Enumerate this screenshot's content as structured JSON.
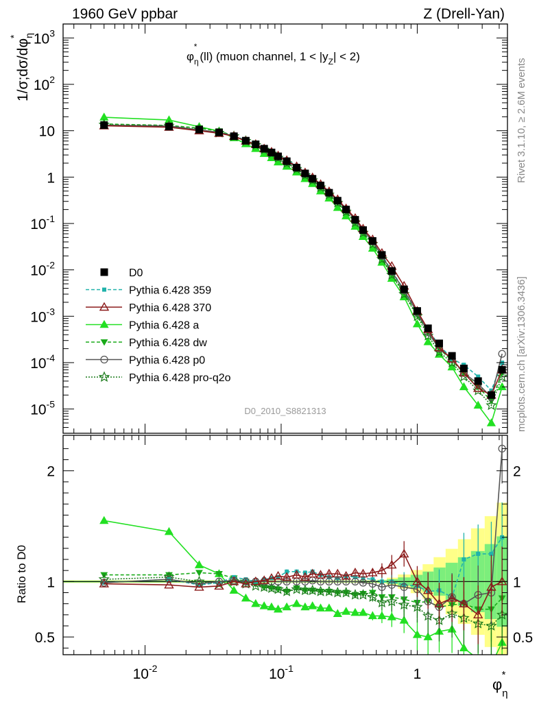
{
  "header": {
    "left": "1960 GeV ppbar",
    "right": "Z (Drell-Yan)"
  },
  "plot_title": {
    "base": "φ",
    "sup": "*",
    "sub": "η",
    "rest": "(ll) (muon channel, 1 < |y",
    "z_sub": "Z",
    "end": "| < 2)"
  },
  "y_label_main": {
    "prefix": "1/σ;dσ/dφ",
    "sup": "*",
    "sub": "η"
  },
  "y_label_ratio": "Ratio to D0",
  "x_label": {
    "base": "φ",
    "sup": "*",
    "sub": "η"
  },
  "side_text_top": "Rivet 3.1.10, ≥ 2.6M events",
  "side_text_bottom": "mcplots.cern.ch [arXiv:1306.3436]",
  "watermark": "D0_2010_S8821313",
  "colors": {
    "data": "#000000",
    "p359": "#20b2aa",
    "p370": "#8b1a1a",
    "pa": "#22e022",
    "pdw": "#1aaa1a",
    "pp0": "#555555",
    "pq2o": "#1a7a1a",
    "band_inner": "#7cee7c",
    "band_outer": "#ffff88"
  },
  "chart_data": [
    {
      "type": "scatter",
      "title": "φ*η(ll) (muon channel, 1 < |yZ| < 2)",
      "xlabel": "φ*η",
      "ylabel": "1/σ;dσ/dφ*η",
      "x_scale": "log",
      "y_scale": "log",
      "xlim": [
        0.0025,
        4.6
      ],
      "ylim": [
        3e-06,
        2000
      ],
      "x_tick_labels": [
        "10^-2",
        "10^-1",
        "1"
      ],
      "y_tick_labels": [
        "10^-5",
        "10^-4",
        "10^-3",
        "10^-2",
        "10^-1",
        "1",
        "10",
        "10^2",
        "10^3"
      ],
      "legend_position": "left",
      "x": [
        0.005,
        0.015,
        0.025,
        0.035,
        0.045,
        0.055,
        0.065,
        0.075,
        0.085,
        0.095,
        0.11,
        0.13,
        0.15,
        0.17,
        0.195,
        0.225,
        0.26,
        0.3,
        0.35,
        0.4,
        0.47,
        0.55,
        0.65,
        0.8,
        1.0,
        1.2,
        1.45,
        1.8,
        2.2,
        2.8,
        3.5,
        4.2
      ],
      "series": [
        {
          "name": "D0",
          "values": [
            13.2,
            12.3,
            10.6,
            9.2,
            7.6,
            6.1,
            5.1,
            4.1,
            3.4,
            2.8,
            2.2,
            1.6,
            1.2,
            0.92,
            0.66,
            0.46,
            0.31,
            0.2,
            0.12,
            0.072,
            0.042,
            0.021,
            0.0095,
            0.0038,
            0.0013,
            0.00055,
            0.00026,
            0.00014,
            7.5e-05,
            4e-05,
            2e-05,
            7e-05
          ]
        },
        {
          "name": "Pythia 6.428 359",
          "values": [
            13.0,
            12.5,
            10.3,
            9.1,
            7.9,
            6.2,
            5.1,
            4.2,
            3.5,
            2.9,
            2.4,
            1.75,
            1.3,
            1.0,
            0.7,
            0.48,
            0.32,
            0.21,
            0.125,
            0.074,
            0.043,
            0.021,
            0.0095,
            0.0037,
            0.00125,
            0.0005,
            0.00024,
            0.00012,
            9e-05,
            5e-05,
            2.5e-05,
            0.0001
          ]
        },
        {
          "name": "Pythia 6.428 370",
          "values": [
            12.8,
            11.9,
            10.0,
            8.8,
            7.6,
            6.0,
            5.1,
            4.1,
            3.5,
            2.9,
            2.3,
            1.7,
            1.25,
            0.98,
            0.7,
            0.49,
            0.33,
            0.21,
            0.13,
            0.077,
            0.045,
            0.023,
            0.012,
            0.0045,
            0.0013,
            0.00052,
            0.00021,
            0.00012,
            6e-05,
            2.8e-05,
            2e-05,
            7e-05
          ]
        },
        {
          "name": "Pythia 6.428 a",
          "values": [
            19.5,
            17.0,
            12.2,
            9.8,
            7.0,
            5.2,
            4.1,
            3.2,
            2.6,
            2.1,
            1.7,
            1.28,
            0.92,
            0.72,
            0.5,
            0.35,
            0.22,
            0.145,
            0.086,
            0.052,
            0.029,
            0.0145,
            0.0065,
            0.0026,
            0.00068,
            0.00028,
            0.00015,
            8e-05,
            3e-05,
            1.2e-05,
            5e-06,
            3e-05
          ]
        },
        {
          "name": "Pythia 6.428 dw",
          "values": [
            14.0,
            13.0,
            11.4,
            9.8,
            7.8,
            6.1,
            5.0,
            3.9,
            3.2,
            2.6,
            2.0,
            1.5,
            1.1,
            0.85,
            0.6,
            0.42,
            0.28,
            0.18,
            0.105,
            0.064,
            0.038,
            0.018,
            0.0082,
            0.0032,
            0.00105,
            0.00045,
            0.0002,
            0.00011,
            6e-05,
            3e-05,
            1.5e-05,
            6e-05
          ]
        },
        {
          "name": "Pythia 6.428 p0",
          "values": [
            13.1,
            12.6,
            10.4,
            9.2,
            7.7,
            6.1,
            5.1,
            4.1,
            3.4,
            2.8,
            2.2,
            1.6,
            1.2,
            0.93,
            0.66,
            0.46,
            0.31,
            0.2,
            0.12,
            0.071,
            0.041,
            0.02,
            0.0092,
            0.0036,
            0.0012,
            0.00045,
            0.0002,
            0.00012,
            6e-05,
            3.5e-05,
            1.8e-05,
            0.000155
          ]
        },
        {
          "name": "Pythia 6.428 pro-q2o",
          "values": [
            13.5,
            12.8,
            10.5,
            9.0,
            7.6,
            6.0,
            4.9,
            3.9,
            3.2,
            2.6,
            2.0,
            1.5,
            1.1,
            0.85,
            0.6,
            0.42,
            0.28,
            0.18,
            0.105,
            0.063,
            0.036,
            0.017,
            0.0078,
            0.003,
            0.001,
            0.00038,
            0.00017,
            0.0001,
            5e-05,
            2.5e-05,
            1.2e-05,
            5e-05
          ]
        }
      ]
    },
    {
      "type": "line",
      "title": "",
      "xlabel": "φ*η",
      "ylabel": "Ratio to D0",
      "x_scale": "log",
      "xlim": [
        0.0025,
        4.6
      ],
      "ylim": [
        0.34,
        2.32
      ],
      "y_tick_labels": [
        "0.5",
        "1",
        "2"
      ],
      "x": [
        0.005,
        0.015,
        0.025,
        0.035,
        0.045,
        0.055,
        0.065,
        0.075,
        0.085,
        0.095,
        0.11,
        0.13,
        0.15,
        0.17,
        0.195,
        0.225,
        0.26,
        0.3,
        0.35,
        0.4,
        0.47,
        0.55,
        0.65,
        0.8,
        1.0,
        1.2,
        1.45,
        1.8,
        2.2,
        2.8,
        3.5,
        4.2
      ],
      "series": [
        {
          "name": "Pythia 6.428 359",
          "values": [
            0.99,
            1.02,
            0.97,
            0.99,
            1.04,
            1.02,
            1.0,
            1.02,
            1.03,
            1.04,
            1.09,
            1.09,
            1.08,
            1.09,
            1.06,
            1.04,
            1.03,
            1.05,
            1.04,
            1.03,
            1.02,
            1.0,
            1.0,
            0.97,
            0.96,
            0.91,
            0.92,
            0.86,
            1.2,
            1.25,
            1.25,
            1.4
          ]
        },
        {
          "name": "Pythia 6.428 370",
          "values": [
            0.98,
            0.97,
            0.95,
            0.96,
            1.0,
            0.98,
            1.0,
            1.01,
            1.03,
            1.05,
            1.04,
            1.06,
            1.04,
            1.07,
            1.06,
            1.07,
            1.07,
            1.05,
            1.08,
            1.07,
            1.08,
            1.1,
            1.15,
            1.25,
            1.0,
            0.92,
            0.8,
            0.85,
            0.8,
            0.7,
            0.95,
            1.0
          ]
        },
        {
          "name": "Pythia 6.428 a",
          "values": [
            1.55,
            1.45,
            1.15,
            1.07,
            0.92,
            0.85,
            0.8,
            0.78,
            0.77,
            0.75,
            0.77,
            0.8,
            0.77,
            0.78,
            0.76,
            0.76,
            0.71,
            0.73,
            0.72,
            0.72,
            0.69,
            0.69,
            0.68,
            0.65,
            0.52,
            0.5,
            0.55,
            0.57,
            0.4,
            0.3,
            0.25,
            0.45
          ]
        },
        {
          "name": "Pythia 6.428 dw",
          "values": [
            1.06,
            1.06,
            1.08,
            1.07,
            1.03,
            1.0,
            0.98,
            0.95,
            0.94,
            0.93,
            0.91,
            0.94,
            0.92,
            0.92,
            0.91,
            0.91,
            0.9,
            0.9,
            0.88,
            0.89,
            0.9,
            0.86,
            0.86,
            0.84,
            0.81,
            0.82,
            0.77,
            0.79,
            0.8,
            0.75,
            0.75,
            0.85
          ]
        },
        {
          "name": "Pythia 6.428 p0",
          "values": [
            0.99,
            1.02,
            0.98,
            1.0,
            1.01,
            1.0,
            1.0,
            1.0,
            1.0,
            1.0,
            1.0,
            1.0,
            1.0,
            1.01,
            1.0,
            1.0,
            1.0,
            1.0,
            1.0,
            0.99,
            0.98,
            0.95,
            0.97,
            0.95,
            0.93,
            0.82,
            0.77,
            0.86,
            0.8,
            0.88,
            0.9,
            2.2
          ]
        },
        {
          "name": "Pythia 6.428 pro-q2o",
          "values": [
            1.02,
            1.04,
            1.0,
            0.98,
            1.0,
            0.98,
            0.96,
            0.95,
            0.94,
            0.93,
            0.91,
            0.93,
            0.92,
            0.92,
            0.91,
            0.91,
            0.9,
            0.9,
            0.88,
            0.88,
            0.86,
            0.81,
            0.82,
            0.79,
            0.77,
            0.69,
            0.65,
            0.71,
            0.67,
            0.62,
            0.6,
            0.7
          ]
        }
      ]
    }
  ]
}
